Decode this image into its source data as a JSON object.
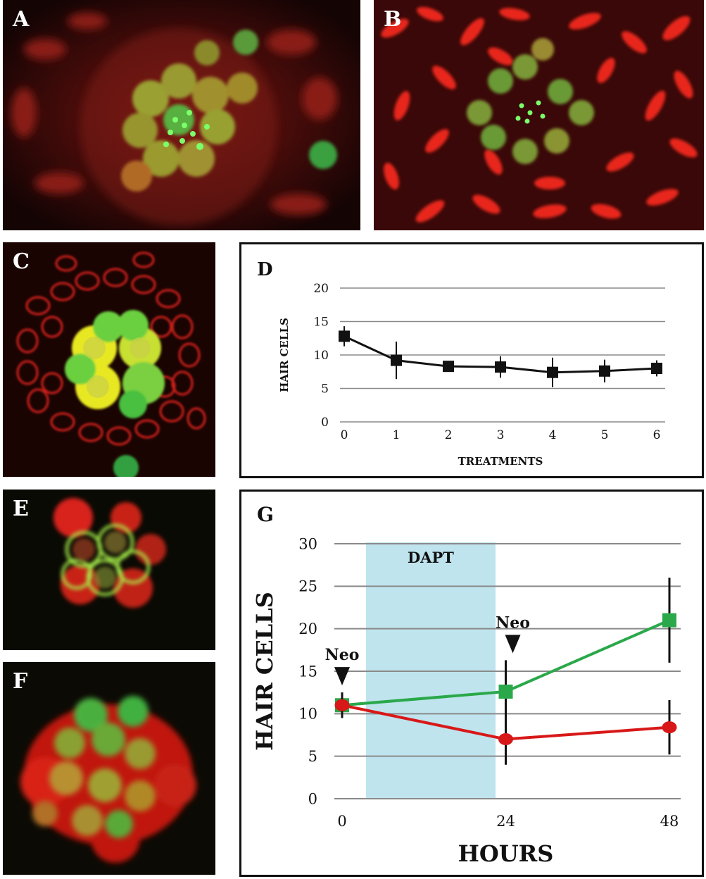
{
  "panels": {
    "a": {
      "label": "A"
    },
    "b": {
      "label": "B"
    },
    "c": {
      "label": "C"
    },
    "e": {
      "label": "E"
    },
    "f": {
      "label": "F"
    }
  },
  "colors": {
    "red": "#d81818",
    "green": "#2aa84a",
    "black": "#111111",
    "dapt_shade": "#bfe4ee"
  },
  "chart_data": [
    {
      "panel": "D",
      "type": "line",
      "xlabel": "TREATMENTS",
      "ylabel": "HAIR CELLS",
      "x": [
        0,
        1,
        2,
        3,
        4,
        5,
        6
      ],
      "ylim": [
        0,
        20
      ],
      "yticks": [
        0,
        5,
        10,
        15,
        20
      ],
      "series": [
        {
          "values": [
            12.8,
            9.2,
            8.3,
            8.2,
            7.4,
            7.6,
            8.0
          ],
          "errors": [
            1.5,
            2.8,
            0.8,
            1.6,
            2.2,
            1.7,
            1.2
          ],
          "color": "#111111",
          "marker": "square"
        }
      ],
      "grid": true
    },
    {
      "panel": "G",
      "type": "line",
      "xlabel": "HOURS",
      "ylabel": "HAIR CELLS",
      "x": [
        0,
        24,
        48
      ],
      "ylim": [
        0,
        30
      ],
      "yticks": [
        0,
        5,
        10,
        15,
        20,
        25,
        30
      ],
      "series": [
        {
          "values": [
            11,
            12.6,
            21
          ],
          "errors": [
            1.5,
            3.7,
            5.0
          ],
          "color": "#2aa84a",
          "marker": "square"
        },
        {
          "values": [
            11,
            7.0,
            8.4
          ],
          "errors": [
            1.5,
            3.0,
            3.2
          ],
          "color": "#d81818",
          "marker": "circle"
        }
      ],
      "shaded_region": {
        "label": "DAPT",
        "x": [
          3.5,
          22.5
        ]
      },
      "annotations": [
        {
          "label": "Neo",
          "x": 0
        },
        {
          "label": "Neo",
          "x": 24
        }
      ],
      "grid": true
    }
  ]
}
